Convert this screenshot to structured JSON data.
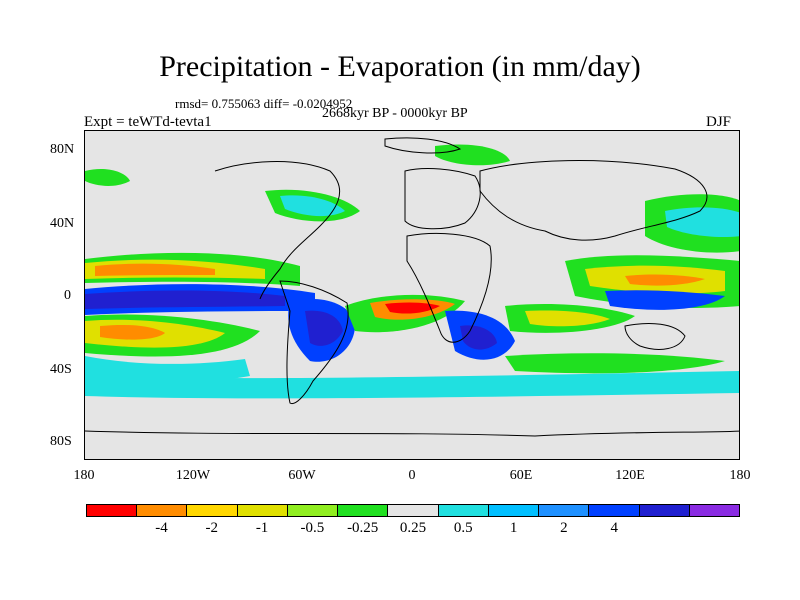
{
  "title": "Precipitation - Evaporation (in mm/day)",
  "stats": "rmsd= 0.755063  diff= -0.0204952",
  "period": "2668kyr BP - 0000kyr BP",
  "experiment": "Expt = teWTd-tevta1",
  "season": "DJF",
  "map": {
    "lat_ticks": [
      "80N",
      "40N",
      "0",
      "40S",
      "80S"
    ],
    "lon_ticks": [
      "180",
      "120W",
      "60W",
      "0",
      "60E",
      "120E",
      "180"
    ],
    "land_color": "#e5e5e5"
  },
  "colorbar": {
    "colors": [
      "#ff0000",
      "#ff8c00",
      "#ffd700",
      "#e0e000",
      "#90ee20",
      "#20e020",
      "#e5e5e5",
      "#20e0e0",
      "#00bfff",
      "#1e90ff",
      "#0040ff",
      "#2020d0",
      "#8a2be2"
    ],
    "labels": [
      "-4",
      "-2",
      "-1",
      "-0.5",
      "-0.25",
      "0.25",
      "0.5",
      "1",
      "2",
      "4"
    ]
  }
}
